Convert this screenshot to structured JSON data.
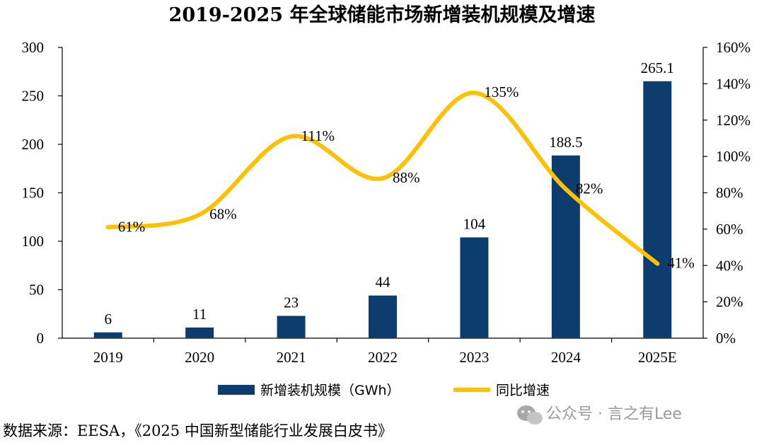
{
  "chart_data": {
    "type": "bar",
    "title": "2019-2025 年全球储能市场新增装机规模及增速",
    "categories": [
      "2019",
      "2020",
      "2021",
      "2022",
      "2023",
      "2024",
      "2025E"
    ],
    "series": [
      {
        "name": "新增装机规模（GWh）",
        "type": "bar",
        "axis": "left",
        "color": "#0d3c6e",
        "values": [
          6,
          11,
          23,
          44,
          104,
          188.5,
          265.1
        ],
        "labels": [
          "6",
          "11",
          "23",
          "44",
          "104",
          "188.5",
          "265.1"
        ]
      },
      {
        "name": "同比增速",
        "type": "line",
        "axis": "right",
        "color": "#ffc000",
        "values": [
          61,
          68,
          111,
          88,
          135,
          82,
          41
        ],
        "labels": [
          "61%",
          "68%",
          "111%",
          "88%",
          "135%",
          "82%",
          "41%"
        ]
      }
    ],
    "y_left": {
      "min": 0,
      "max": 300,
      "ticks": [
        "0",
        "50",
        "100",
        "150",
        "200",
        "250",
        "300"
      ]
    },
    "y_right": {
      "min": 0,
      "max": 160,
      "ticks": [
        "0%",
        "20%",
        "40%",
        "60%",
        "80%",
        "100%",
        "120%",
        "140%",
        "160%"
      ]
    },
    "legend": "bottom-center",
    "grid": false
  },
  "source": "数据来源：EESA，《2025 中国新型储能行业发展白皮书》",
  "watermark": {
    "icon": "wechat-icon",
    "text": "公众号 · 言之有Lee"
  }
}
